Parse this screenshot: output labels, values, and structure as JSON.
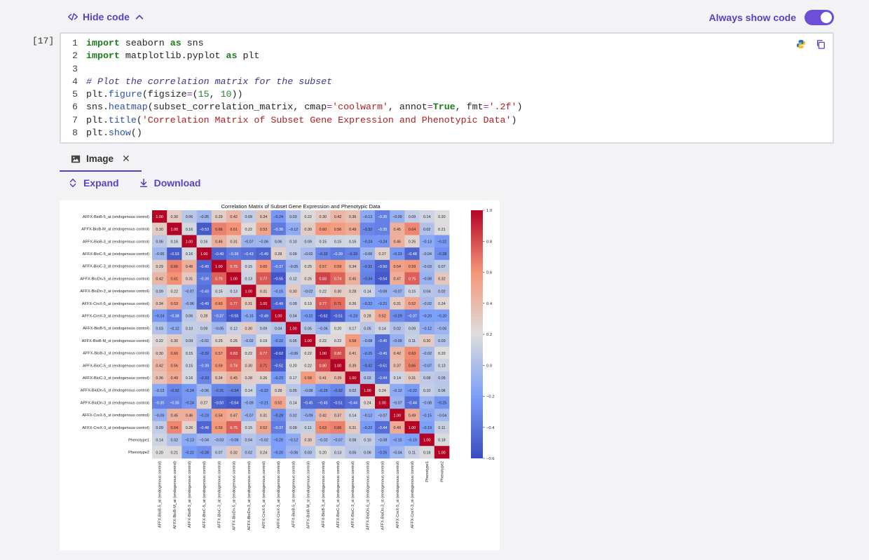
{
  "toolbar": {
    "hide_code_label": "Hide code",
    "always_show_label": "Always show code",
    "always_show_on": true
  },
  "cell": {
    "exec_count": "[17]",
    "lines": [
      "import seaborn as sns",
      "import matplotlib.pyplot as plt",
      "",
      "# Plot the correlation matrix for the subset",
      "plt.figure(figsize=(15, 10))",
      "sns.heatmap(subset_correlation_matrix, cmap='coolwarm', annot=True, fmt='.2f')",
      "plt.title('Correlation Matrix of Subset Gene Expression and Phenotypic Data')",
      "plt.show()"
    ]
  },
  "output": {
    "tab_label": "Image",
    "expand_label": "Expand",
    "download_label": "Download"
  },
  "chart_data": {
    "type": "heatmap",
    "title": "Correlation Matrix of Subset Gene Expression and Phenotypic Data",
    "labels": [
      "AFFX-BioB-5_at (endogenous control)",
      "AFFX-BioB-M_at (endogenous control)",
      "AFFX-BioB-3_at (endogenous control)",
      "AFFX-BioC-5_at (endogenous control)",
      "AFFX-BioC-3_at (endogenous control)",
      "AFFX-BioDn-5_at (endogenous control)",
      "AFFX-BioDn-3_at (endogenous control)",
      "AFFX-CreX-5_at (endogenous control)",
      "AFFX-CreX-3_at (endogenous control)",
      "AFFX-BioB-5_st (endogenous control)",
      "AFFX-BioB-M_st (endogenous control)",
      "AFFX-BioB-3_st (endogenous control)",
      "AFFX-BioC-5_st (endogenous control)",
      "AFFX-BioC-3_st (endogenous control)",
      "AFFX-BioDn-5_st (endogenous control)",
      "AFFX-BioDn-3_st (endogenous control)",
      "AFFX-CreX-5_st (endogenous control)",
      "AFFX-CreX-3_st (endogenous control)",
      "Phenotype1",
      "Phenotype2"
    ],
    "matrix": [
      [
        1.0,
        0.3,
        0.06,
        -0.05,
        0.29,
        0.42,
        0.09,
        0.34,
        -0.24,
        0.03,
        0.22,
        0.3,
        0.42,
        0.36,
        -0.13,
        -0.35,
        -0.09,
        0.09,
        0.14,
        0.2
      ],
      [
        0.3,
        1.0,
        0.16,
        -0.53,
        0.66,
        0.61,
        0.22,
        0.53,
        -0.38,
        -0.12,
        0.3,
        0.6,
        0.56,
        0.49,
        -0.32,
        -0.35,
        0.45,
        0.64,
        0.02,
        0.21
      ],
      [
        0.06,
        0.16,
        1.0,
        0.16,
        0.46,
        0.31,
        -0.07,
        -0.06,
        0.06,
        0.1,
        0.09,
        0.15,
        0.15,
        0.16,
        -0.24,
        -0.24,
        0.46,
        0.26,
        -0.13,
        -0.22
      ],
      [
        -0.05,
        -0.53,
        0.16,
        1.0,
        -0.49,
        -0.39,
        -0.43,
        -0.49,
        0.28,
        0.09,
        -0.02,
        -0.32,
        -0.39,
        -0.33,
        -0.06,
        0.27,
        -0.23,
        -0.48,
        -0.04,
        -0.28
      ],
      [
        0.29,
        0.66,
        0.46,
        -0.49,
        1.0,
        0.75,
        0.15,
        0.6,
        -0.37,
        -0.05,
        0.25,
        0.57,
        0.59,
        0.34,
        -0.31,
        -0.5,
        0.54,
        0.59,
        -0.03,
        0.07
      ],
      [
        0.42,
        0.61,
        0.31,
        -0.39,
        0.75,
        1.0,
        0.13,
        0.77,
        -0.55,
        0.12,
        0.25,
        0.83,
        0.74,
        0.45,
        -0.34,
        -0.54,
        0.47,
        0.75,
        -0.08,
        0.32
      ],
      [
        0.09,
        0.22,
        -0.07,
        -0.43,
        0.15,
        0.13,
        1.0,
        0.31,
        -0.15,
        0.3,
        -0.02,
        0.22,
        0.3,
        0.28,
        0.14,
        -0.09,
        -0.07,
        0.15,
        0.04,
        0.02
      ],
      [
        0.34,
        0.53,
        -0.06,
        -0.49,
        0.6,
        0.77,
        0.31,
        1.0,
        -0.49,
        0.09,
        0.19,
        0.77,
        0.71,
        0.26,
        -0.22,
        -0.21,
        0.31,
        0.52,
        -0.02,
        0.24
      ],
      [
        -0.24,
        -0.38,
        0.06,
        0.28,
        -0.37,
        -0.55,
        -0.15,
        -0.49,
        1.0,
        0.04,
        -0.22,
        -0.62,
        -0.51,
        -0.23,
        0.28,
        0.52,
        -0.29,
        -0.37,
        -0.2,
        -0.2
      ],
      [
        0.03,
        -0.12,
        0.1,
        0.09,
        -0.05,
        0.12,
        0.3,
        0.09,
        0.04,
        1.0,
        0.05,
        -0.06,
        0.2,
        0.17,
        0.05,
        0.14,
        0.02,
        0.09,
        -0.12,
        -0.06
      ],
      [
        0.22,
        0.3,
        0.09,
        -0.02,
        0.25,
        0.25,
        -0.02,
        0.19,
        -0.22,
        0.05,
        1.0,
        0.22,
        0.22,
        0.58,
        -0.08,
        -0.45,
        -0.09,
        0.11,
        0.3,
        0.03
      ],
      [
        0.3,
        0.6,
        0.15,
        -0.32,
        0.57,
        0.83,
        0.22,
        0.77,
        -0.62,
        -0.06,
        0.22,
        1.0,
        0.8,
        0.41,
        -0.25,
        -0.45,
        0.42,
        0.63,
        -0.02,
        0.2
      ],
      [
        0.42,
        0.56,
        0.15,
        -0.39,
        0.59,
        0.74,
        0.3,
        0.71,
        -0.51,
        0.2,
        0.22,
        0.8,
        1.0,
        0.39,
        -0.32,
        -0.51,
        0.37,
        0.66,
        -0.07,
        0.13
      ],
      [
        0.36,
        0.49,
        0.16,
        -0.33,
        0.34,
        0.45,
        0.28,
        0.26,
        -0.23,
        0.17,
        0.58,
        0.41,
        0.39,
        1.0,
        0.02,
        -0.44,
        0.14,
        0.31,
        0.08,
        0.05
      ],
      [
        -0.13,
        -0.32,
        -0.24,
        -0.06,
        -0.31,
        -0.34,
        0.14,
        -0.22,
        0.28,
        0.05,
        -0.08,
        -0.25,
        -0.32,
        0.02,
        1.0,
        0.24,
        -0.12,
        -0.22,
        0.1,
        0.06
      ],
      [
        -0.35,
        -0.35,
        -0.24,
        0.27,
        -0.5,
        -0.54,
        -0.09,
        -0.21,
        0.52,
        0.14,
        -0.45,
        -0.45,
        -0.51,
        -0.44,
        0.24,
        1.0,
        -0.07,
        -0.44,
        -0.08,
        -0.25
      ],
      [
        -0.09,
        0.45,
        0.46,
        -0.23,
        0.54,
        0.47,
        -0.07,
        0.31,
        -0.29,
        0.02,
        -0.09,
        0.42,
        0.37,
        0.14,
        -0.12,
        -0.07,
        1.0,
        0.49,
        -0.15,
        -0.04
      ],
      [
        0.09,
        0.64,
        0.26,
        -0.48,
        0.59,
        0.75,
        0.15,
        0.52,
        -0.37,
        0.09,
        0.11,
        0.63,
        0.66,
        0.31,
        -0.22,
        -0.44,
        0.49,
        1.0,
        -0.19,
        0.11
      ],
      [
        0.14,
        0.02,
        -0.13,
        -0.04,
        -0.03,
        -0.08,
        0.04,
        -0.02,
        -0.2,
        -0.12,
        0.3,
        -0.02,
        -0.07,
        0.08,
        0.1,
        -0.08,
        -0.15,
        -0.19,
        1.0,
        0.18
      ],
      [
        0.2,
        0.21,
        -0.22,
        -0.28,
        0.07,
        0.32,
        0.02,
        0.24,
        -0.2,
        -0.06,
        0.03,
        0.2,
        0.13,
        0.05,
        0.06,
        -0.25,
        -0.04,
        0.11,
        0.18,
        1.0
      ]
    ],
    "colorbar": {
      "min": -0.6,
      "max": 1.0,
      "ticks": [
        "1.0",
        "0.8",
        "0.6",
        "0.4",
        "0.2",
        "0.0",
        "−0.2",
        "−0.4",
        "−0.6"
      ]
    },
    "cmap": "coolwarm"
  }
}
